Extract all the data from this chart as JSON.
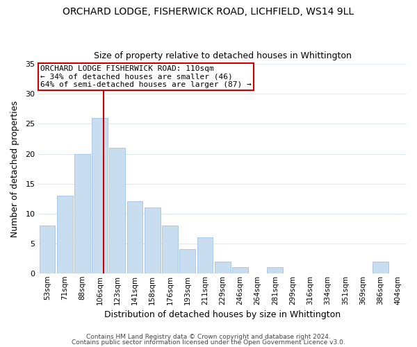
{
  "title": "ORCHARD LODGE, FISHERWICK ROAD, LICHFIELD, WS14 9LL",
  "subtitle": "Size of property relative to detached houses in Whittington",
  "xlabel": "Distribution of detached houses by size in Whittington",
  "ylabel": "Number of detached properties",
  "bar_labels": [
    "53sqm",
    "71sqm",
    "88sqm",
    "106sqm",
    "123sqm",
    "141sqm",
    "158sqm",
    "176sqm",
    "193sqm",
    "211sqm",
    "229sqm",
    "246sqm",
    "264sqm",
    "281sqm",
    "299sqm",
    "316sqm",
    "334sqm",
    "351sqm",
    "369sqm",
    "386sqm",
    "404sqm"
  ],
  "bar_heights": [
    8,
    13,
    20,
    26,
    21,
    12,
    11,
    8,
    4,
    6,
    2,
    1,
    0,
    1,
    0,
    0,
    0,
    0,
    0,
    2,
    0
  ],
  "bar_color": "#c8ddf0",
  "bar_edge_color": "#a8c8e8",
  "reference_line_x": 3.2,
  "reference_line_color": "#cc0000",
  "annotation_text": "ORCHARD LODGE FISHERWICK ROAD: 110sqm\n← 34% of detached houses are smaller (46)\n64% of semi-detached houses are larger (87) →",
  "annotation_box_color": "#ffffff",
  "annotation_box_edge_color": "#cc0000",
  "ylim": [
    0,
    35
  ],
  "yticks": [
    0,
    5,
    10,
    15,
    20,
    25,
    30,
    35
  ],
  "footer_line1": "Contains HM Land Registry data © Crown copyright and database right 2024.",
  "footer_line2": "Contains public sector information licensed under the Open Government Licence v3.0.",
  "background_color": "#ffffff",
  "grid_color": "#dde8f0"
}
